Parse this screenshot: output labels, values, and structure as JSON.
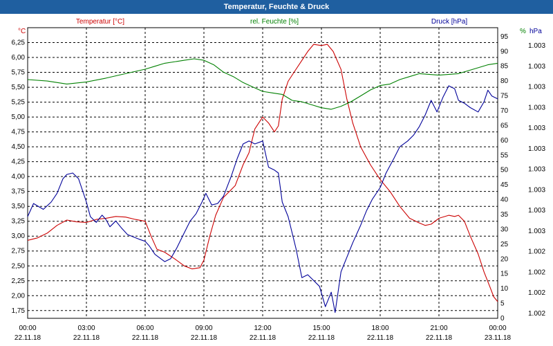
{
  "window": {
    "title": "Temperatur, Feuchte & Druck"
  },
  "colors": {
    "temperature": "#cc0000",
    "humidity": "#008000",
    "pressure": "#000099",
    "title_bar": "#1f5fa0"
  },
  "chart_data": {
    "type": "line",
    "grid": true,
    "x_labels": [
      {
        "time": "00:00",
        "date": "22.11.18"
      },
      {
        "time": "03:00",
        "date": "22.11.18"
      },
      {
        "time": "06:00",
        "date": "22.11.18"
      },
      {
        "time": "09:00",
        "date": "22.11.18"
      },
      {
        "time": "12:00",
        "date": "22.11.18"
      },
      {
        "time": "15:00",
        "date": "22.11.18"
      },
      {
        "time": "18:00",
        "date": "22.11.18"
      },
      {
        "time": "21:00",
        "date": "22.11.18"
      },
      {
        "time": "00:00",
        "date": "23.11.18"
      }
    ],
    "axes": {
      "temperature": {
        "unit": "°C",
        "min": 1.62,
        "max": 6.5,
        "ticks": [
          "6,25",
          "6,00",
          "5,75",
          "5,50",
          "5,25",
          "5,00",
          "4,75",
          "4,50",
          "4,25",
          "4,00",
          "3,75",
          "3,50",
          "3,25",
          "3,00",
          "2,75",
          "2,50",
          "2,25",
          "2,00",
          "1,75"
        ],
        "tick_values": [
          6.25,
          6.0,
          5.75,
          5.5,
          5.25,
          5.0,
          4.75,
          4.5,
          4.25,
          4.0,
          3.75,
          3.5,
          3.25,
          3.0,
          2.75,
          2.5,
          2.25,
          2.0,
          1.75
        ]
      },
      "humidity": {
        "unit": "%",
        "min": 0,
        "max": 98,
        "ticks": [
          "95",
          "90",
          "85",
          "80",
          "75",
          "70",
          "65",
          "60",
          "55",
          "50",
          "45",
          "40",
          "35",
          "30",
          "25",
          "20",
          "15",
          "10",
          "5",
          "0"
        ],
        "tick_values": [
          95,
          90,
          85,
          80,
          75,
          70,
          65,
          60,
          55,
          50,
          45,
          40,
          35,
          30,
          25,
          20,
          15,
          10,
          5,
          0
        ]
      },
      "pressure": {
        "unit": "hPa",
        "ticks": [
          "1.003",
          "1.003",
          "1.003",
          "1.003",
          "1.003",
          "1.003",
          "1.003",
          "1.003",
          "1.003",
          "1.003",
          "1.002",
          "1.002",
          "1.002",
          "1.002"
        ]
      }
    },
    "series": [
      {
        "name": "Temperatur [°C]",
        "axis": "temperature",
        "color": "#cc0000",
        "points": [
          [
            0,
            2.93
          ],
          [
            0.5,
            2.97
          ],
          [
            1,
            3.05
          ],
          [
            1.5,
            3.18
          ],
          [
            2,
            3.27
          ],
          [
            2.5,
            3.24
          ],
          [
            3,
            3.23
          ],
          [
            3.5,
            3.28
          ],
          [
            4,
            3.3
          ],
          [
            4.5,
            3.33
          ],
          [
            5,
            3.32
          ],
          [
            5.5,
            3.28
          ],
          [
            6,
            3.25
          ],
          [
            6.3,
            3.0
          ],
          [
            6.6,
            2.78
          ],
          [
            7,
            2.73
          ],
          [
            7.5,
            2.62
          ],
          [
            8,
            2.5
          ],
          [
            8.4,
            2.45
          ],
          [
            8.8,
            2.47
          ],
          [
            9,
            2.6
          ],
          [
            9.3,
            3.0
          ],
          [
            9.6,
            3.35
          ],
          [
            10,
            3.65
          ],
          [
            10.3,
            3.75
          ],
          [
            10.6,
            3.85
          ],
          [
            11,
            4.2
          ],
          [
            11.3,
            4.4
          ],
          [
            11.6,
            4.8
          ],
          [
            12,
            5.0
          ],
          [
            12.3,
            4.9
          ],
          [
            12.6,
            4.75
          ],
          [
            12.8,
            4.85
          ],
          [
            13,
            5.3
          ],
          [
            13.3,
            5.6
          ],
          [
            13.6,
            5.75
          ],
          [
            14,
            5.95
          ],
          [
            14.3,
            6.1
          ],
          [
            14.6,
            6.22
          ],
          [
            15,
            6.2
          ],
          [
            15.3,
            6.22
          ],
          [
            15.6,
            6.1
          ],
          [
            16,
            5.8
          ],
          [
            16.3,
            5.3
          ],
          [
            16.6,
            4.9
          ],
          [
            17,
            4.5
          ],
          [
            17.5,
            4.2
          ],
          [
            18,
            3.95
          ],
          [
            18.5,
            3.75
          ],
          [
            19,
            3.5
          ],
          [
            19.5,
            3.3
          ],
          [
            20,
            3.22
          ],
          [
            20.3,
            3.18
          ],
          [
            20.6,
            3.2
          ],
          [
            21,
            3.3
          ],
          [
            21.5,
            3.35
          ],
          [
            21.8,
            3.33
          ],
          [
            22,
            3.35
          ],
          [
            22.3,
            3.25
          ],
          [
            22.6,
            3.0
          ],
          [
            23,
            2.7
          ],
          [
            23.3,
            2.4
          ],
          [
            23.6,
            2.15
          ],
          [
            23.8,
            1.98
          ],
          [
            24,
            1.9
          ]
        ]
      },
      {
        "name": "rel. Feuchte [%]",
        "axis": "humidity",
        "color": "#008000",
        "points": [
          [
            0,
            80.5
          ],
          [
            1,
            80.0
          ],
          [
            2,
            79.0
          ],
          [
            3,
            79.7
          ],
          [
            4,
            81.0
          ],
          [
            5,
            82.5
          ],
          [
            6,
            84.0
          ],
          [
            6.5,
            85.0
          ],
          [
            7,
            86.0
          ],
          [
            8,
            87.0
          ],
          [
            8.5,
            87.5
          ],
          [
            9,
            87.0
          ],
          [
            9.5,
            85.5
          ],
          [
            10,
            83.0
          ],
          [
            10.5,
            81.5
          ],
          [
            11,
            79.5
          ],
          [
            11.5,
            78.0
          ],
          [
            12,
            76.5
          ],
          [
            12.5,
            76.0
          ],
          [
            13,
            75.5
          ],
          [
            13.5,
            73.5
          ],
          [
            14,
            73.0
          ],
          [
            14.5,
            72.0
          ],
          [
            15,
            71.0
          ],
          [
            15.5,
            70.5
          ],
          [
            16,
            71.5
          ],
          [
            16.5,
            73.0
          ],
          [
            17,
            75.0
          ],
          [
            17.5,
            77.0
          ],
          [
            18,
            78.5
          ],
          [
            18.5,
            79.0
          ],
          [
            19,
            80.5
          ],
          [
            19.5,
            81.5
          ],
          [
            20,
            82.5
          ],
          [
            21,
            82.0
          ],
          [
            22,
            82.5
          ],
          [
            22.5,
            83.5
          ],
          [
            23,
            84.5
          ],
          [
            23.5,
            85.5
          ],
          [
            24,
            86.0
          ]
        ]
      },
      {
        "name": "Druck [hPa]",
        "axis": "pressure",
        "color": "#000099",
        "points": [
          [
            0,
            1.5
          ],
          [
            0.3,
            1.95
          ],
          [
            0.8,
            1.75
          ],
          [
            1.2,
            2.0
          ],
          [
            1.5,
            2.3
          ],
          [
            1.8,
            2.8
          ],
          [
            2,
            2.95
          ],
          [
            2.3,
            3.0
          ],
          [
            2.6,
            2.8
          ],
          [
            3,
            2.0
          ],
          [
            3.2,
            1.5
          ],
          [
            3.5,
            1.3
          ],
          [
            3.8,
            1.55
          ],
          [
            4,
            1.4
          ],
          [
            4.2,
            1.15
          ],
          [
            4.5,
            1.35
          ],
          [
            4.8,
            1.1
          ],
          [
            5.1,
            0.88
          ],
          [
            5.4,
            0.8
          ],
          [
            5.7,
            0.72
          ],
          [
            6,
            0.65
          ],
          [
            6.2,
            0.5
          ],
          [
            6.5,
            0.2
          ],
          [
            6.8,
            0.05
          ],
          [
            7,
            -0.05
          ],
          [
            7.3,
            0.05
          ],
          [
            7.6,
            0.4
          ],
          [
            8,
            0.95
          ],
          [
            8.3,
            1.35
          ],
          [
            8.6,
            1.6
          ],
          [
            8.9,
            2.0
          ],
          [
            9.1,
            2.3
          ],
          [
            9.4,
            1.9
          ],
          [
            9.7,
            1.95
          ],
          [
            10,
            2.2
          ],
          [
            10.4,
            2.9
          ],
          [
            10.7,
            3.5
          ],
          [
            11,
            4.0
          ],
          [
            11.3,
            4.1
          ],
          [
            11.6,
            4.0
          ],
          [
            12,
            4.1
          ],
          [
            12.3,
            3.2
          ],
          [
            12.6,
            3.1
          ],
          [
            12.8,
            3.0
          ],
          [
            13,
            2.0
          ],
          [
            13.3,
            1.5
          ],
          [
            13.7,
            0.4
          ],
          [
            14,
            -0.6
          ],
          [
            14.3,
            -0.5
          ],
          [
            14.6,
            -0.7
          ],
          [
            14.9,
            -0.9
          ],
          [
            15.2,
            -1.6
          ],
          [
            15.5,
            -1.1
          ],
          [
            15.7,
            -1.8
          ],
          [
            16,
            -0.4
          ],
          [
            16.3,
            0.1
          ],
          [
            16.6,
            0.6
          ],
          [
            17,
            1.2
          ],
          [
            17.3,
            1.7
          ],
          [
            17.6,
            2.1
          ],
          [
            18,
            2.5
          ],
          [
            18.3,
            3.0
          ],
          [
            18.7,
            3.5
          ],
          [
            19,
            3.9
          ],
          [
            19.4,
            4.1
          ],
          [
            19.7,
            4.3
          ],
          [
            20,
            4.6
          ],
          [
            20.3,
            5.0
          ],
          [
            20.6,
            5.5
          ],
          [
            20.9,
            5.1
          ],
          [
            21.2,
            5.6
          ],
          [
            21.5,
            6.0
          ],
          [
            21.8,
            5.9
          ],
          [
            22,
            5.5
          ],
          [
            22.3,
            5.4
          ],
          [
            22.6,
            5.25
          ],
          [
            23,
            5.1
          ],
          [
            23.3,
            5.45
          ],
          [
            23.5,
            5.85
          ],
          [
            23.7,
            5.65
          ],
          [
            24,
            5.55
          ]
        ]
      }
    ]
  }
}
